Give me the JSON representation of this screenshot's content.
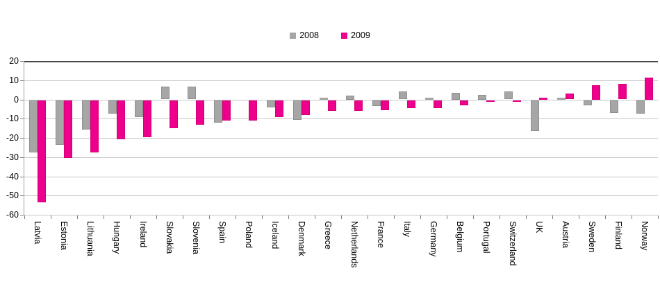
{
  "chart_data": {
    "type": "bar",
    "title": "",
    "xlabel": "",
    "ylabel": "",
    "categories": [
      "Latvia",
      "Estonia",
      "Lithuania",
      "Hungary",
      "Ireland",
      "Slovakia",
      "Slovenia",
      "Spain",
      "Poland",
      "Iceland",
      "Denmark",
      "Greece",
      "Netherlands",
      "France",
      "Italy",
      "Germany",
      "Belgium",
      "Portugal",
      "Switzerland",
      "UK",
      "Austria",
      "Sweden",
      "Finland",
      "Norway"
    ],
    "series": [
      {
        "name": "2008",
        "color": "#A6A6A6",
        "border": "#8F8F8F",
        "values": [
          -27,
          -23,
          -15,
          -7,
          -8.5,
          6.5,
          6.5,
          -11.5,
          0,
          -3.5,
          -10,
          1,
          2,
          -3,
          4,
          1,
          3.5,
          2.5,
          4,
          -16,
          1,
          -2.5,
          -6.5,
          -7
        ]
      },
      {
        "name": "2009",
        "color": "#EC008C",
        "border": "#D60076",
        "values": [
          -53,
          -30,
          -27,
          -20,
          -19,
          -14.5,
          -12.5,
          -10.5,
          -10.5,
          -8.5,
          -7.5,
          -5.5,
          -5.5,
          -5,
          -4,
          -4,
          -2.5,
          -0.5,
          -0.5,
          1,
          3,
          7.5,
          8,
          11.5
        ]
      }
    ],
    "ylim": [
      -60,
      20
    ],
    "yticks": [
      20,
      10,
      0,
      -10,
      -20,
      -30,
      -40,
      -50,
      -60
    ],
    "grid": true,
    "legend_position": "top-center"
  },
  "colors": {
    "grid": "#C6C6C6",
    "top_line": "#4A4A4A",
    "axis": "#A0A0A0",
    "tick": "#7F7F7F",
    "text": "#000000",
    "background": "#FFFFFF"
  }
}
